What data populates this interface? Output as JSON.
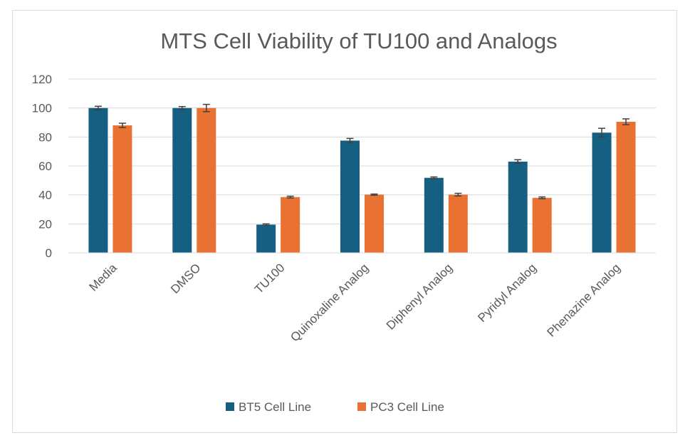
{
  "chart_data": {
    "type": "bar",
    "title": "MTS Cell Viability of TU100 and Analogs",
    "xlabel": "",
    "ylabel": "",
    "ylim": [
      0,
      120
    ],
    "yticks": [
      0,
      20,
      40,
      60,
      80,
      100,
      120
    ],
    "grid": true,
    "legend_position": "bottom",
    "categories": [
      "Media",
      "DMSO",
      "TU100",
      "Quinoxaline Analog",
      "Diphenyl Analog",
      "Pyridyl Analog",
      "Phenazine Analog"
    ],
    "series": [
      {
        "name": "BT5 Cell Line",
        "color": "#156082",
        "values": [
          100,
          100,
          19.5,
          77.5,
          51.8,
          63,
          83
        ],
        "errors": [
          1.2,
          1.0,
          0.5,
          1.5,
          0.6,
          1.3,
          3.0
        ]
      },
      {
        "name": "PC3 Cell Line",
        "color": "#E97132",
        "values": [
          88,
          100,
          38.5,
          40.2,
          40.2,
          38,
          90.5
        ],
        "errors": [
          1.5,
          2.5,
          0.6,
          0.4,
          0.9,
          0.6,
          2.0
        ]
      }
    ]
  }
}
